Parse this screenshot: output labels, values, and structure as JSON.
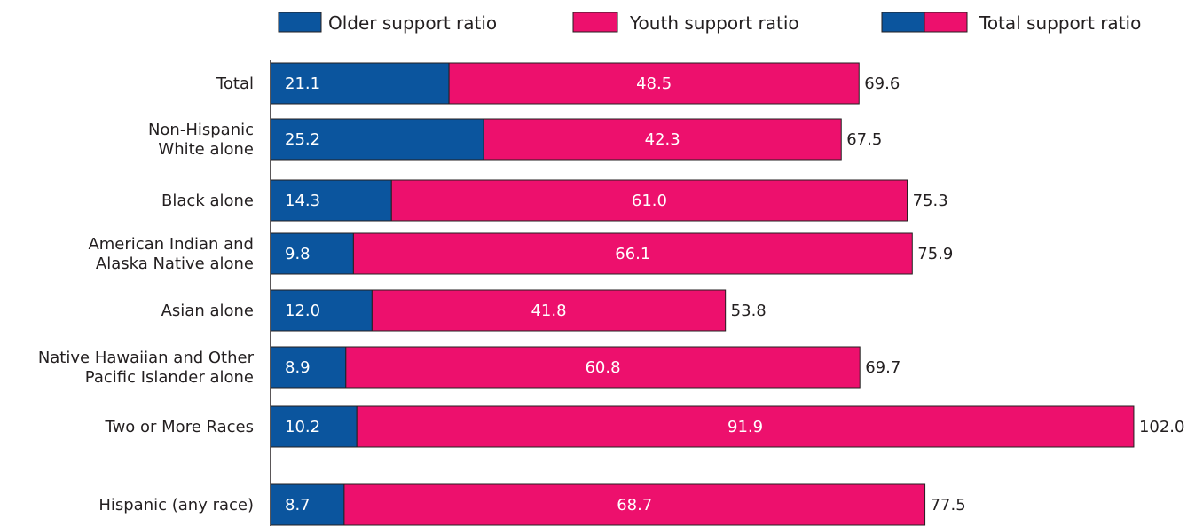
{
  "chart_data": {
    "type": "bar",
    "orientation": "horizontal",
    "stacked": true,
    "categories": [
      [
        "Total"
      ],
      [
        "Non-Hispanic",
        "White alone"
      ],
      [
        "Black alone"
      ],
      [
        "American Indian and",
        "Alaska Native alone"
      ],
      [
        "Asian alone"
      ],
      [
        "Native Hawaiian and Other",
        "Pacific Islander alone"
      ],
      [
        "Two or More Races"
      ],
      [
        "Hispanic (any race)"
      ]
    ],
    "series": [
      {
        "name": "Older support ratio",
        "color": "#0b559e",
        "values": [
          21.1,
          25.2,
          14.3,
          9.8,
          12.0,
          8.9,
          10.2,
          8.7
        ],
        "labels": [
          "21.1",
          "25.2",
          "14.3",
          "9.8",
          "12.0",
          "8.9",
          "10.2",
          "8.7"
        ]
      },
      {
        "name": "Youth support ratio",
        "color": "#ed106d",
        "values": [
          48.5,
          42.3,
          61.0,
          66.1,
          41.8,
          60.8,
          91.9,
          68.7
        ],
        "labels": [
          "48.5",
          "42.3",
          "61.0",
          "66.1",
          "41.8",
          "60.8",
          "91.9",
          "68.7"
        ]
      }
    ],
    "totals": {
      "name": "Total support ratio",
      "values": [
        69.6,
        67.5,
        75.3,
        75.9,
        53.8,
        69.7,
        102.0,
        77.5
      ],
      "labels": [
        "69.6",
        "67.5",
        "75.3",
        "75.9",
        "53.8",
        "69.7",
        "102.0",
        "77.5"
      ]
    },
    "xlim": [
      0,
      102.0
    ],
    "grid": false,
    "legend": "top"
  }
}
